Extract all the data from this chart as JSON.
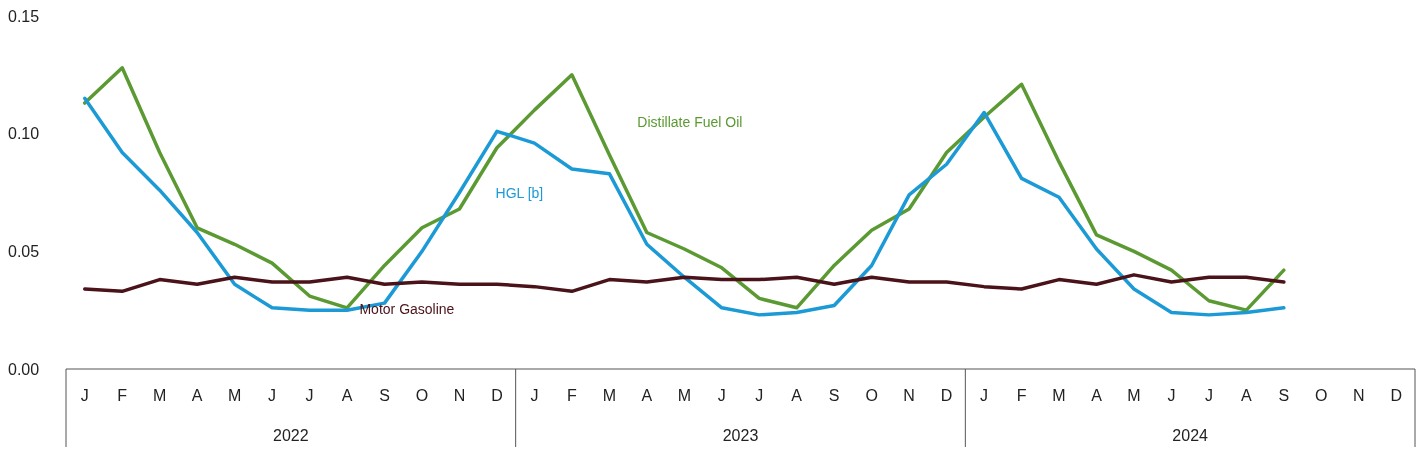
{
  "chart_data": {
    "type": "line",
    "categories": [
      "J",
      "F",
      "M",
      "A",
      "M",
      "J",
      "J",
      "A",
      "S",
      "O",
      "N",
      "D",
      "J",
      "F",
      "M",
      "A",
      "M",
      "J",
      "J",
      "A",
      "S",
      "O",
      "N",
      "D",
      "J",
      "F",
      "M",
      "A",
      "M",
      "J",
      "J",
      "A",
      "S",
      "O",
      "N",
      "D"
    ],
    "annotations": [
      "2022",
      "2023",
      "2024"
    ],
    "ylim": [
      0,
      0.15
    ],
    "yticks": [
      {
        "value": 0,
        "label": "0.00"
      },
      {
        "value": 0.05,
        "label": "0.05"
      },
      {
        "value": 0.1,
        "label": "0.10"
      },
      {
        "value": 0.15,
        "label": "0.15"
      }
    ],
    "grid": false,
    "legend": false,
    "marker": "none",
    "line_style": "solid",
    "series": [
      {
        "name": "Distillate Fuel Oil",
        "color": "#5b9a32",
        "values": [
          0.113,
          0.128,
          0.092,
          0.06,
          0.053,
          0.045,
          0.031,
          0.026,
          0.044,
          0.06,
          0.068,
          0.094,
          0.11,
          0.125,
          0.091,
          0.058,
          0.051,
          0.043,
          0.03,
          0.026,
          0.044,
          0.059,
          0.068,
          0.092,
          0.107,
          0.121,
          0.088,
          0.057,
          0.05,
          0.042,
          0.029,
          0.025,
          0.042,
          null,
          null,
          null
        ]
      },
      {
        "name": "HGL [b]",
        "color": "#1b9ad6",
        "values": [
          0.115,
          0.092,
          0.076,
          0.058,
          0.036,
          0.026,
          0.025,
          0.025,
          0.028,
          0.05,
          0.075,
          0.101,
          0.096,
          0.085,
          0.083,
          0.053,
          0.039,
          0.026,
          0.023,
          0.024,
          0.027,
          0.044,
          0.074,
          0.087,
          0.109,
          0.081,
          0.073,
          0.051,
          0.034,
          0.024,
          0.023,
          0.024,
          0.026,
          null,
          null,
          null
        ]
      },
      {
        "name": "Motor Gasoline",
        "color": "#4a1219",
        "values": [
          0.034,
          0.033,
          0.038,
          0.036,
          0.039,
          0.037,
          0.037,
          0.039,
          0.036,
          0.037,
          0.036,
          0.036,
          0.035,
          0.033,
          0.038,
          0.037,
          0.039,
          0.038,
          0.038,
          0.039,
          0.036,
          0.039,
          0.037,
          0.037,
          0.035,
          0.034,
          0.038,
          0.036,
          0.04,
          0.037,
          0.039,
          0.039,
          0.037,
          null,
          null,
          null
        ]
      }
    ]
  }
}
